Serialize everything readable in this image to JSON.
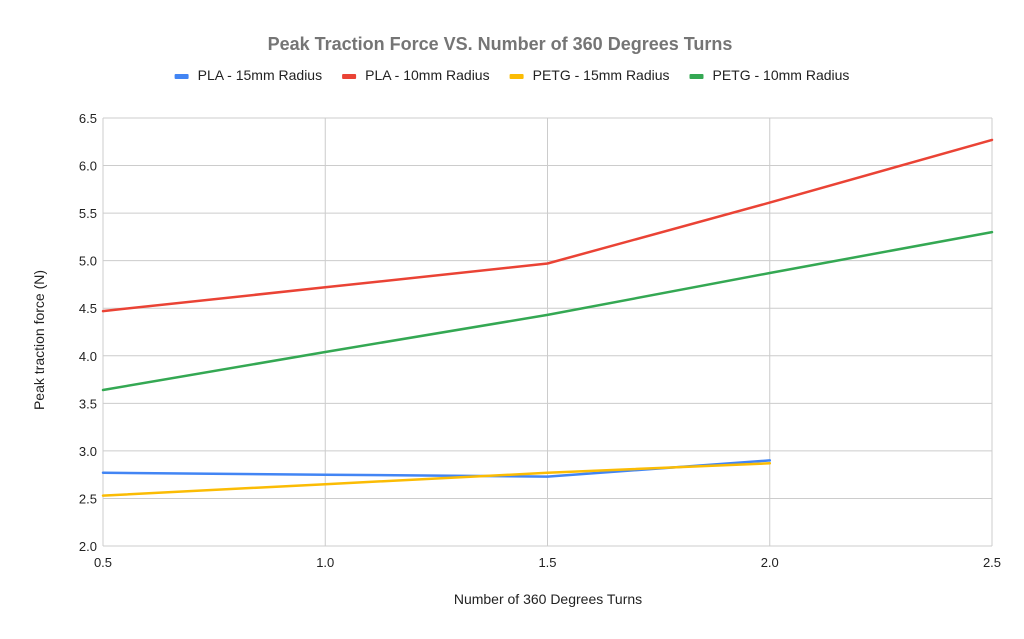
{
  "chart_data": {
    "type": "line",
    "title": "Peak Traction Force VS. Number of 360 Degrees Turns",
    "xlabel": "Number of 360 Degrees Turns",
    "ylabel": "Peak traction force (N)",
    "xlim": [
      0.5,
      2.5
    ],
    "ylim": [
      2.0,
      6.5
    ],
    "x_ticks": [
      "0.5",
      "1.0",
      "1.5",
      "2.0",
      "2.5"
    ],
    "y_ticks": [
      "2.0",
      "2.5",
      "3.0",
      "3.5",
      "4.0",
      "4.5",
      "5.0",
      "5.5",
      "6.0",
      "6.5"
    ],
    "legend_position": "top",
    "grid": true,
    "series": [
      {
        "name": "PLA - 15mm Radius",
        "color": "#4285f4",
        "x": [
          0.5,
          1.0,
          1.5,
          2.0
        ],
        "y": [
          2.77,
          2.75,
          2.73,
          2.9
        ]
      },
      {
        "name": "PLA - 10mm Radius",
        "color": "#ea4335",
        "x": [
          0.5,
          1.0,
          1.5,
          2.0,
          2.5
        ],
        "y": [
          4.47,
          4.72,
          4.97,
          5.61,
          6.27
        ]
      },
      {
        "name": "PETG - 15mm Radius",
        "color": "#fbbc04",
        "x": [
          0.5,
          1.0,
          1.5,
          2.0
        ],
        "y": [
          2.53,
          2.65,
          2.77,
          2.87
        ]
      },
      {
        "name": "PETG - 10mm Radius",
        "color": "#34a853",
        "x": [
          0.5,
          1.0,
          1.5,
          2.0,
          2.5
        ],
        "y": [
          3.64,
          4.04,
          4.43,
          4.87,
          5.3
        ]
      }
    ]
  }
}
